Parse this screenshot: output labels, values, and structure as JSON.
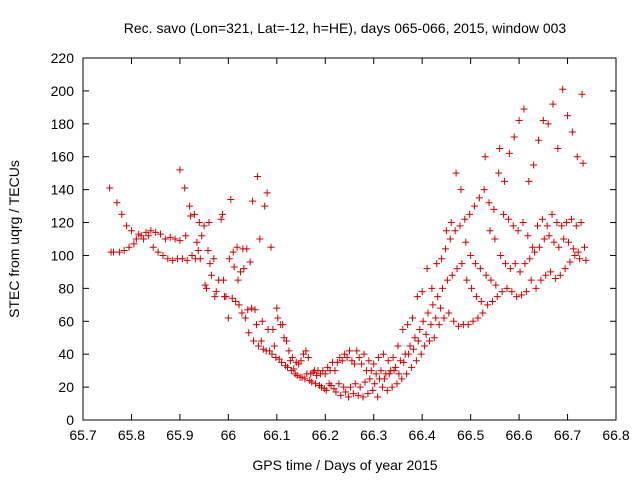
{
  "chart_data": {
    "type": "scatter",
    "title": "Rec. savo (Lon=321, Lat=-12, h=HE), days 065-066, 2015, window 003",
    "xlabel": "GPS time / Days of year 2015",
    "ylabel": "STEC from uqrg / TECUs",
    "xlim": [
      65.7,
      66.8
    ],
    "ylim": [
      0,
      220
    ],
    "xticks": [
      "65.7",
      "65.8",
      "65.9",
      "66",
      "66.1",
      "66.2",
      "66.3",
      "66.4",
      "66.5",
      "66.6",
      "66.7",
      "66.8"
    ],
    "yticks": [
      "0",
      "20",
      "40",
      "60",
      "80",
      "100",
      "120",
      "140",
      "160",
      "180",
      "200",
      "220"
    ],
    "grid": false,
    "marker": "+",
    "color": "#cc0000",
    "points": [
      [
        65.755,
        141
      ],
      [
        65.758,
        102
      ],
      [
        65.763,
        102
      ],
      [
        65.77,
        132
      ],
      [
        65.775,
        102
      ],
      [
        65.78,
        125
      ],
      [
        65.785,
        103
      ],
      [
        65.79,
        118
      ],
      [
        65.795,
        105
      ],
      [
        65.8,
        115
      ],
      [
        65.805,
        107
      ],
      [
        65.81,
        110
      ],
      [
        65.815,
        113
      ],
      [
        65.82,
        112
      ],
      [
        65.825,
        110
      ],
      [
        65.83,
        114
      ],
      [
        65.835,
        112
      ],
      [
        65.84,
        115
      ],
      [
        65.845,
        105
      ],
      [
        65.85,
        114
      ],
      [
        65.855,
        102
      ],
      [
        65.86,
        113
      ],
      [
        65.865,
        100
      ],
      [
        65.87,
        110
      ],
      [
        65.875,
        98
      ],
      [
        65.88,
        111
      ],
      [
        65.885,
        97
      ],
      [
        65.89,
        110
      ],
      [
        65.895,
        98
      ],
      [
        65.9,
        152
      ],
      [
        65.9,
        109
      ],
      [
        65.905,
        98
      ],
      [
        65.91,
        141
      ],
      [
        65.912,
        112
      ],
      [
        65.915,
        97
      ],
      [
        65.92,
        130
      ],
      [
        65.922,
        124
      ],
      [
        65.925,
        100
      ],
      [
        65.93,
        125
      ],
      [
        65.932,
        98
      ],
      [
        65.935,
        108
      ],
      [
        65.938,
        103
      ],
      [
        65.94,
        120
      ],
      [
        65.942,
        98
      ],
      [
        65.945,
        112
      ],
      [
        65.95,
        118
      ],
      [
        65.952,
        82
      ],
      [
        65.955,
        80
      ],
      [
        65.958,
        103
      ],
      [
        65.96,
        120
      ],
      [
        65.962,
        95
      ],
      [
        65.965,
        88
      ],
      [
        65.97,
        98
      ],
      [
        65.972,
        75
      ],
      [
        65.975,
        78
      ],
      [
        65.98,
        85
      ],
      [
        65.985,
        122
      ],
      [
        65.988,
        125
      ],
      [
        65.99,
        85
      ],
      [
        65.992,
        75
      ],
      [
        65.995,
        75
      ],
      [
        66.0,
        62
      ],
      [
        66.002,
        98
      ],
      [
        66.005,
        134
      ],
      [
        66.008,
        74
      ],
      [
        66.01,
        102
      ],
      [
        66.012,
        93
      ],
      [
        66.015,
        72
      ],
      [
        66.018,
        105
      ],
      [
        66.02,
        85
      ],
      [
        66.022,
        70
      ],
      [
        66.025,
        90
      ],
      [
        66.028,
        65
      ],
      [
        66.03,
        104
      ],
      [
        66.032,
        92
      ],
      [
        66.035,
        62
      ],
      [
        66.038,
        104
      ],
      [
        66.04,
        67
      ],
      [
        66.042,
        53
      ],
      [
        66.045,
        96
      ],
      [
        66.048,
        68
      ],
      [
        66.05,
        133
      ],
      [
        66.052,
        48
      ],
      [
        66.055,
        67
      ],
      [
        66.058,
        58
      ],
      [
        66.06,
        148
      ],
      [
        66.062,
        45
      ],
      [
        66.065,
        110
      ],
      [
        66.068,
        48
      ],
      [
        66.07,
        60
      ],
      [
        66.072,
        43
      ],
      [
        66.075,
        130
      ],
      [
        66.078,
        42
      ],
      [
        66.08,
        138
      ],
      [
        66.082,
        55
      ],
      [
        66.085,
        42
      ],
      [
        66.088,
        105
      ],
      [
        66.09,
        40
      ],
      [
        66.092,
        55
      ],
      [
        66.095,
        45
      ],
      [
        66.098,
        38
      ],
      [
        66.1,
        68
      ],
      [
        66.102,
        62
      ],
      [
        66.105,
        37
      ],
      [
        66.108,
        58
      ],
      [
        66.11,
        35
      ],
      [
        66.112,
        58
      ],
      [
        66.115,
        50
      ],
      [
        66.118,
        33
      ],
      [
        66.12,
        48
      ],
      [
        66.122,
        32
      ],
      [
        66.125,
        42
      ],
      [
        66.128,
        36
      ],
      [
        66.13,
        30
      ],
      [
        66.132,
        38
      ],
      [
        66.135,
        31
      ],
      [
        66.138,
        28
      ],
      [
        66.14,
        35
      ],
      [
        66.142,
        27
      ],
      [
        66.145,
        34
      ],
      [
        66.148,
        26
      ],
      [
        66.15,
        36
      ],
      [
        66.152,
        26
      ],
      [
        66.155,
        40
      ],
      [
        66.158,
        25
      ],
      [
        66.16,
        42
      ],
      [
        66.162,
        28
      ],
      [
        66.165,
        38
      ],
      [
        66.168,
        24
      ],
      [
        66.17,
        28
      ],
      [
        66.172,
        23
      ],
      [
        66.175,
        29
      ],
      [
        66.178,
        30
      ],
      [
        66.18,
        22
      ],
      [
        66.182,
        27
      ],
      [
        66.185,
        30
      ],
      [
        66.188,
        21
      ],
      [
        66.19,
        28
      ],
      [
        66.192,
        20
      ],
      [
        66.195,
        30
      ],
      [
        66.198,
        19
      ],
      [
        66.2,
        28
      ],
      [
        66.202,
        18
      ],
      [
        66.205,
        32
      ],
      [
        66.208,
        22
      ],
      [
        66.21,
        30
      ],
      [
        66.212,
        21
      ],
      [
        66.215,
        35
      ],
      [
        66.218,
        19
      ],
      [
        66.22,
        30
      ],
      [
        66.222,
        17
      ],
      [
        66.225,
        35
      ],
      [
        66.228,
        22
      ],
      [
        66.23,
        38
      ],
      [
        66.232,
        15
      ],
      [
        66.235,
        36
      ],
      [
        66.238,
        20
      ],
      [
        66.24,
        40
      ],
      [
        66.242,
        17
      ],
      [
        66.245,
        38
      ],
      [
        66.248,
        14
      ],
      [
        66.25,
        42
      ],
      [
        66.252,
        20
      ],
      [
        66.255,
        36
      ],
      [
        66.258,
        16
      ],
      [
        66.26,
        34
      ],
      [
        66.262,
        22
      ],
      [
        66.265,
        42
      ],
      [
        66.268,
        15
      ],
      [
        66.27,
        38
      ],
      [
        66.272,
        20
      ],
      [
        66.275,
        34
      ],
      [
        66.278,
        14
      ],
      [
        66.28,
        40
      ],
      [
        66.282,
        23
      ],
      [
        66.285,
        30
      ],
      [
        66.288,
        16
      ],
      [
        66.29,
        36
      ],
      [
        66.292,
        25
      ],
      [
        66.295,
        30
      ],
      [
        66.298,
        18
      ],
      [
        66.3,
        34
      ],
      [
        66.302,
        22
      ],
      [
        66.305,
        28
      ],
      [
        66.308,
        14
      ],
      [
        66.31,
        38
      ],
      [
        66.312,
        25
      ],
      [
        66.315,
        30
      ],
      [
        66.318,
        20
      ],
      [
        66.32,
        40
      ],
      [
        66.322,
        25
      ],
      [
        66.325,
        28
      ],
      [
        66.328,
        18
      ],
      [
        66.33,
        36
      ],
      [
        66.332,
        28
      ],
      [
        66.335,
        30
      ],
      [
        66.338,
        20
      ],
      [
        66.34,
        38
      ],
      [
        66.342,
        30
      ],
      [
        66.345,
        32
      ],
      [
        66.348,
        22
      ],
      [
        66.35,
        45
      ],
      [
        66.352,
        28
      ],
      [
        66.355,
        36
      ],
      [
        66.358,
        25
      ],
      [
        66.36,
        55
      ],
      [
        66.362,
        35
      ],
      [
        66.365,
        40
      ],
      [
        66.368,
        28
      ],
      [
        66.37,
        58
      ],
      [
        66.372,
        40
      ],
      [
        66.375,
        45
      ],
      [
        66.378,
        32
      ],
      [
        66.38,
        62
      ],
      [
        66.382,
        43
      ],
      [
        66.385,
        50
      ],
      [
        66.388,
        36
      ],
      [
        66.39,
        75
      ],
      [
        66.392,
        48
      ],
      [
        66.395,
        55
      ],
      [
        66.398,
        40
      ],
      [
        66.4,
        78
      ],
      [
        66.402,
        60
      ],
      [
        66.405,
        45
      ],
      [
        66.408,
        52
      ],
      [
        66.41,
        92
      ],
      [
        66.412,
        65
      ],
      [
        66.415,
        48
      ],
      [
        66.418,
        58
      ],
      [
        66.42,
        80
      ],
      [
        66.422,
        70
      ],
      [
        66.425,
        50
      ],
      [
        66.428,
        62
      ],
      [
        66.43,
        95
      ],
      [
        66.432,
        75
      ],
      [
        66.435,
        58
      ],
      [
        66.438,
        68
      ],
      [
        66.44,
        98
      ],
      [
        66.442,
        80
      ],
      [
        66.445,
        62
      ],
      [
        66.448,
        104
      ],
      [
        66.45,
        115
      ],
      [
        66.452,
        85
      ],
      [
        66.455,
        65
      ],
      [
        66.458,
        110
      ],
      [
        66.46,
        120
      ],
      [
        66.462,
        88
      ],
      [
        66.465,
        60
      ],
      [
        66.468,
        115
      ],
      [
        66.47,
        150
      ],
      [
        66.472,
        92
      ],
      [
        66.475,
        57
      ],
      [
        66.478,
        118
      ],
      [
        66.48,
        140
      ],
      [
        66.482,
        95
      ],
      [
        66.485,
        58
      ],
      [
        66.488,
        122
      ],
      [
        66.49,
        108
      ],
      [
        66.492,
        85
      ],
      [
        66.495,
        58
      ],
      [
        66.498,
        125
      ],
      [
        66.5,
        100
      ],
      [
        66.502,
        80
      ],
      [
        66.505,
        60
      ],
      [
        66.508,
        130
      ],
      [
        66.51,
        95
      ],
      [
        66.512,
        75
      ],
      [
        66.515,
        62
      ],
      [
        66.518,
        135
      ],
      [
        66.52,
        92
      ],
      [
        66.522,
        72
      ],
      [
        66.525,
        65
      ],
      [
        66.528,
        140
      ],
      [
        66.53,
        160
      ],
      [
        66.532,
        88
      ],
      [
        66.535,
        70
      ],
      [
        66.538,
        132
      ],
      [
        66.54,
        115
      ],
      [
        66.542,
        85
      ],
      [
        66.545,
        72
      ],
      [
        66.548,
        128
      ],
      [
        66.55,
        110
      ],
      [
        66.552,
        82
      ],
      [
        66.555,
        75
      ],
      [
        66.558,
        150
      ],
      [
        66.56,
        165
      ],
      [
        66.562,
        100
      ],
      [
        66.565,
        78
      ],
      [
        66.568,
        125
      ],
      [
        66.57,
        145
      ],
      [
        66.572,
        95
      ],
      [
        66.575,
        80
      ],
      [
        66.578,
        122
      ],
      [
        66.58,
        162
      ],
      [
        66.582,
        92
      ],
      [
        66.585,
        78
      ],
      [
        66.588,
        118
      ],
      [
        66.59,
        172
      ],
      [
        66.592,
        95
      ],
      [
        66.595,
        75
      ],
      [
        66.598,
        115
      ],
      [
        66.6,
        182
      ],
      [
        66.602,
        90
      ],
      [
        66.605,
        76
      ],
      [
        66.608,
        120
      ],
      [
        66.61,
        189
      ],
      [
        66.612,
        95
      ],
      [
        66.615,
        78
      ],
      [
        66.618,
        112
      ],
      [
        66.62,
        145
      ],
      [
        66.622,
        98
      ],
      [
        66.625,
        85
      ],
      [
        66.628,
        105
      ],
      [
        66.63,
        155
      ],
      [
        66.632,
        102
      ],
      [
        66.635,
        80
      ],
      [
        66.638,
        118
      ],
      [
        66.64,
        170
      ],
      [
        66.642,
        105
      ],
      [
        66.645,
        85
      ],
      [
        66.648,
        122
      ],
      [
        66.65,
        182
      ],
      [
        66.652,
        110
      ],
      [
        66.655,
        88
      ],
      [
        66.658,
        118
      ],
      [
        66.66,
        180
      ],
      [
        66.662,
        112
      ],
      [
        66.665,
        90
      ],
      [
        66.668,
        125
      ],
      [
        66.67,
        192
      ],
      [
        66.672,
        108
      ],
      [
        66.675,
        86
      ],
      [
        66.678,
        120
      ],
      [
        66.68,
        165
      ],
      [
        66.682,
        105
      ],
      [
        66.685,
        88
      ],
      [
        66.688,
        118
      ],
      [
        66.69,
        201
      ],
      [
        66.692,
        110
      ],
      [
        66.695,
        92
      ],
      [
        66.698,
        120
      ],
      [
        66.7,
        185
      ],
      [
        66.702,
        108
      ],
      [
        66.705,
        96
      ],
      [
        66.708,
        122
      ],
      [
        66.71,
        175
      ],
      [
        66.712,
        104
      ],
      [
        66.715,
        100
      ],
      [
        66.718,
        118
      ],
      [
        66.72,
        160
      ],
      [
        66.722,
        102
      ],
      [
        66.725,
        98
      ],
      [
        66.728,
        120
      ],
      [
        66.73,
        198
      ],
      [
        66.732,
        156
      ],
      [
        66.735,
        105
      ],
      [
        66.738,
        97
      ]
    ]
  }
}
